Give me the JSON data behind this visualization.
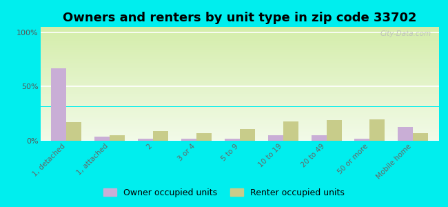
{
  "title": "Owners and renters by unit type in zip code 33702",
  "categories": [
    "1, detached",
    "1, attached",
    "2",
    "3 or 4",
    "5 to 9",
    "10 to 19",
    "20 to 49",
    "50 or more",
    "Mobile home"
  ],
  "owner_values": [
    67,
    4,
    2,
    2,
    2,
    5,
    5,
    2,
    13
  ],
  "renter_values": [
    17,
    5,
    9,
    7,
    11,
    18,
    19,
    20,
    7
  ],
  "owner_color": "#c9aed6",
  "renter_color": "#c8cc8a",
  "outer_bg": "#00eeee",
  "ylabel_ticks": [
    0,
    50,
    100
  ],
  "ylabel_labels": [
    "0%",
    "50%",
    "100%"
  ],
  "ylim": [
    0,
    105
  ],
  "bar_width": 0.35,
  "watermark": "City-Data.com",
  "legend_owner": "Owner occupied units",
  "legend_renter": "Renter occupied units",
  "title_fontsize": 13,
  "tick_fontsize": 7.5,
  "legend_fontsize": 9
}
